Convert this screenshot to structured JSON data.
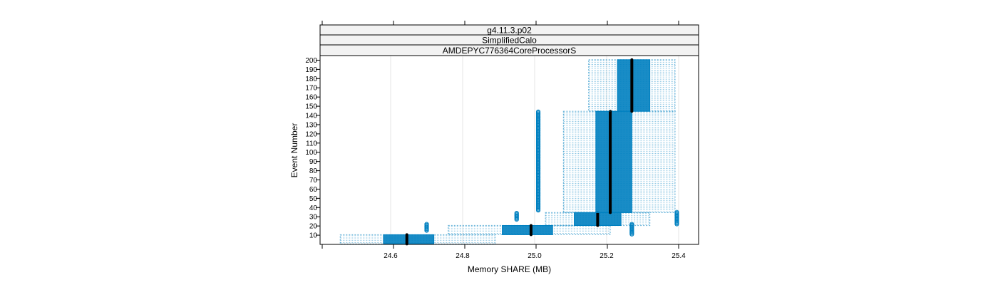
{
  "chart_data": {
    "type": "box-and-whisker (bwplot)",
    "strips": [
      "g4.11.3.p02",
      "SimplifiedCalo",
      "AMDEPYC776364CoreProcessorS"
    ],
    "xlabel": "Memory SHARE (MB)",
    "ylabel": "Event Number",
    "xlim": [
      24.4,
      25.46
    ],
    "ylim": [
      0,
      205
    ],
    "x_ticks": [
      "24.6",
      "24.8",
      "25.0",
      "25.2",
      "25.4"
    ],
    "x_tick_values": [
      24.6,
      24.8,
      25.0,
      25.2,
      25.4
    ],
    "y_ticks": [
      "10",
      "20",
      "30",
      "40",
      "50",
      "60",
      "70",
      "80",
      "90",
      "100",
      "110",
      "120",
      "130",
      "140",
      "150",
      "160",
      "170",
      "180",
      "190",
      "200"
    ],
    "y_tick_values": [
      10,
      20,
      30,
      40,
      50,
      60,
      70,
      80,
      90,
      100,
      110,
      120,
      130,
      140,
      150,
      160,
      170,
      180,
      190,
      200
    ],
    "grid_vertical": true,
    "color": "#0080C0",
    "median_color": "#000000",
    "boxes": [
      {
        "event_range": [
          1,
          10
        ],
        "whisker_low": 24.46,
        "q1": 24.58,
        "median": 24.645,
        "q3": 24.72,
        "whisker_high": 24.89
      },
      {
        "event_range": [
          11,
          20
        ],
        "whisker_low": 24.76,
        "q1": 24.91,
        "median": 24.99,
        "q3": 25.05,
        "whisker_high": 25.21
      },
      {
        "event_range": [
          21,
          34
        ],
        "whisker_low": 25.03,
        "q1": 25.11,
        "median": 25.175,
        "q3": 25.24,
        "whisker_high": 25.32
      },
      {
        "event_range": [
          35,
          144
        ],
        "whisker_low": 25.08,
        "q1": 25.17,
        "median": 25.21,
        "q3": 25.27,
        "whisker_high": 25.39
      },
      {
        "event_range": [
          145,
          200
        ],
        "whisker_low": 25.15,
        "q1": 25.23,
        "median": 25.27,
        "q3": 25.32,
        "whisker_high": 25.39
      }
    ],
    "outliers": [
      {
        "x": 24.7,
        "event_range": [
          15,
          22
        ]
      },
      {
        "x": 24.95,
        "event_range": [
          27,
          34
        ]
      },
      {
        "x": 25.01,
        "event_range": [
          37,
          144
        ]
      },
      {
        "x": 25.27,
        "event_range": [
          11,
          22
        ]
      },
      {
        "x": 25.395,
        "event_range": [
          22,
          35
        ]
      }
    ]
  }
}
